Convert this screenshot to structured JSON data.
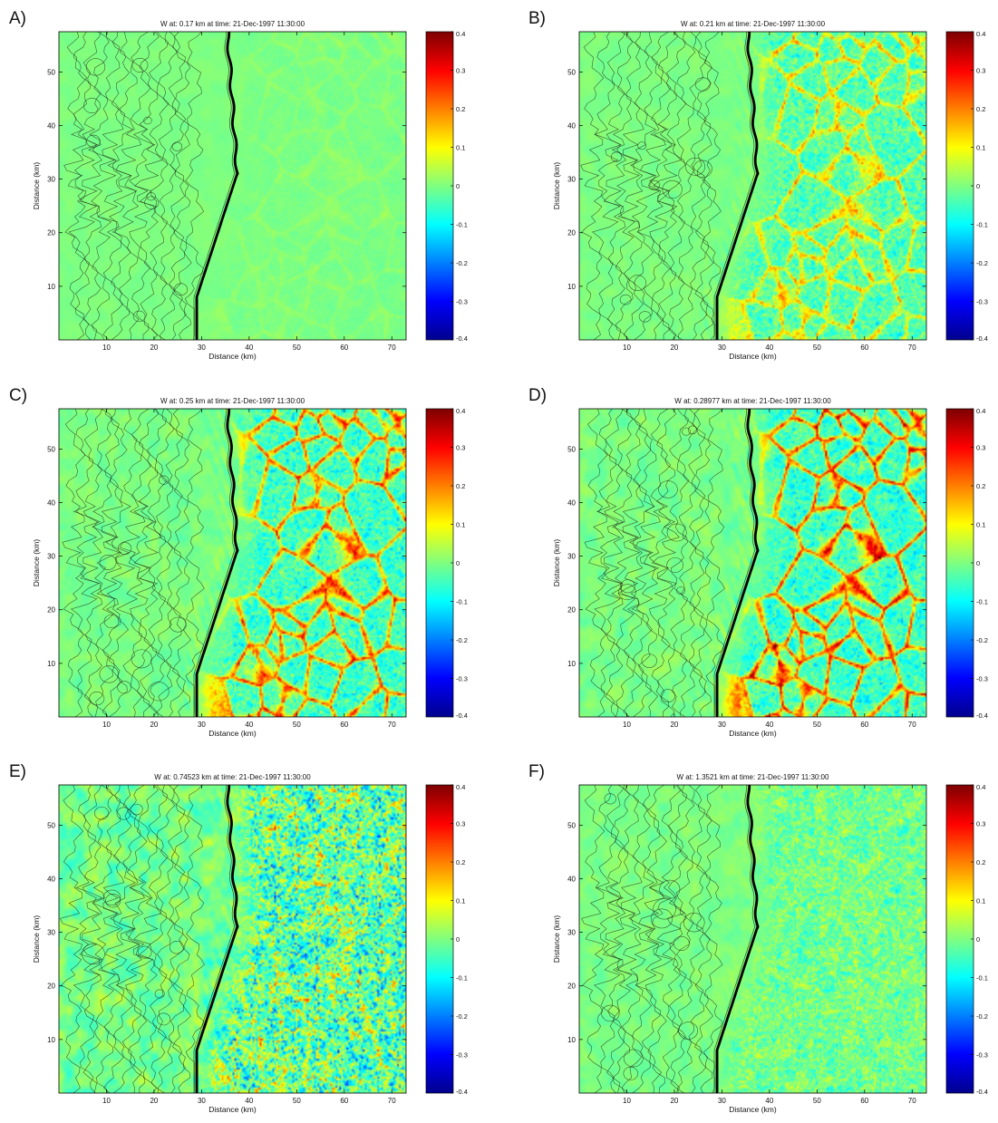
{
  "figure": {
    "palette": {
      "background": "#89c56a",
      "contour": "#1d2a18",
      "coast": "#000000",
      "colormap": [
        "#00008f",
        "#0000ff",
        "#0080ff",
        "#00ffff",
        "#80ff80",
        "#ffff00",
        "#ff8000",
        "#ff0000",
        "#800000"
      ]
    }
  },
  "chart_data": [
    {
      "panel": "A)",
      "type": "heatmap",
      "title": "W   at:  0.17 km    at time:  21-Dec-1997 11:30:00",
      "xlabel": "Distance (km)",
      "ylabel": "Distance (km)",
      "xlim": [
        0,
        73
      ],
      "ylim": [
        0,
        57.5
      ],
      "xticks": [
        10,
        20,
        30,
        40,
        50,
        60,
        70
      ],
      "yticks": [
        10,
        20,
        30,
        40,
        50
      ],
      "colorbar": {
        "limits": [
          -0.4,
          0.4
        ],
        "ticks": [
          "0.4",
          "0.3",
          "0.2",
          "0.1",
          "0",
          "-0.1",
          "-0.2",
          "-0.3",
          "-0.4"
        ]
      },
      "activity": 0.05,
      "cell_strength": 0.06,
      "left_noise": 0.02
    },
    {
      "panel": "B)",
      "type": "heatmap",
      "title": "W   at:  0.21 km    at time:  21-Dec-1997 11:30:00",
      "xlabel": "Distance (km)",
      "ylabel": "Distance (km)",
      "xlim": [
        0,
        73
      ],
      "ylim": [
        0,
        57.5
      ],
      "xticks": [
        10,
        20,
        30,
        40,
        50,
        60,
        70
      ],
      "yticks": [
        10,
        20,
        30,
        40,
        50
      ],
      "colorbar": {
        "limits": [
          -0.4,
          0.4
        ],
        "ticks": [
          "0.4",
          "0.3",
          "0.2",
          "0.1",
          "0",
          "-0.1",
          "-0.2",
          "-0.3",
          "-0.4"
        ]
      },
      "activity": 0.55,
      "cell_strength": 0.5,
      "left_noise": 0.03
    },
    {
      "panel": "C)",
      "type": "heatmap",
      "title": "W   at:  0.25 km    at time:  21-Dec-1997 11:30:00",
      "xlabel": "Distance (km)",
      "ylabel": "Distance (km)",
      "xlim": [
        0,
        73
      ],
      "ylim": [
        0,
        57.5
      ],
      "xticks": [
        10,
        20,
        30,
        40,
        50,
        60,
        70
      ],
      "yticks": [
        10,
        20,
        30,
        40,
        50
      ],
      "colorbar": {
        "limits": [
          -0.4,
          0.4
        ],
        "ticks": [
          "0.4",
          "0.3",
          "0.2",
          "0.1",
          "0",
          "-0.1",
          "-0.2",
          "-0.3",
          "-0.4"
        ]
      },
      "activity": 0.9,
      "cell_strength": 0.85,
      "left_noise": 0.05
    },
    {
      "panel": "D)",
      "type": "heatmap",
      "title": "W   at:  0.28977 km    at time:  21-Dec-1997 11:30:00",
      "xlabel": "Distance (km)",
      "ylabel": "Distance (km)",
      "xlim": [
        0,
        73
      ],
      "ylim": [
        0,
        57.5
      ],
      "xticks": [
        10,
        20,
        30,
        40,
        50,
        60,
        70
      ],
      "yticks": [
        10,
        20,
        30,
        40,
        50
      ],
      "colorbar": {
        "limits": [
          -0.4,
          0.4
        ],
        "ticks": [
          "0.4",
          "0.3",
          "0.2",
          "0.1",
          "0",
          "-0.1",
          "-0.2",
          "-0.3",
          "-0.4"
        ]
      },
      "activity": 1.0,
      "cell_strength": 0.95,
      "left_noise": 0.06
    },
    {
      "panel": "E)",
      "type": "heatmap",
      "title": "W   at:  0.74523 km    at time:  21-Dec-1997 11:30:00",
      "xlabel": "Distance (km)",
      "ylabel": "Distance (km)",
      "xlim": [
        0,
        73
      ],
      "ylim": [
        0,
        57.5
      ],
      "xticks": [
        10,
        20,
        30,
        40,
        50,
        60,
        70
      ],
      "yticks": [
        10,
        20,
        30,
        40,
        50
      ],
      "colorbar": {
        "limits": [
          -0.4,
          0.4
        ],
        "ticks": [
          "0.4",
          "0.3",
          "0.2",
          "0.1",
          "0",
          "-0.1",
          "-0.2",
          "-0.3",
          "-0.4"
        ]
      },
      "activity": 0.95,
      "cell_strength": 0.25,
      "left_noise": 0.12
    },
    {
      "panel": "F)",
      "type": "heatmap",
      "title": "W   at:  1.3521 km    at time:  21-Dec-1997 11:30:00",
      "xlabel": "Distance (km)",
      "ylabel": "Distance (km)",
      "xlim": [
        0,
        73
      ],
      "ylim": [
        0,
        57.5
      ],
      "xticks": [
        10,
        20,
        30,
        40,
        50,
        60,
        70
      ],
      "yticks": [
        10,
        20,
        30,
        40,
        50
      ],
      "colorbar": {
        "limits": [
          -0.4,
          0.4
        ],
        "ticks": [
          "0.4",
          "0.3",
          "0.2",
          "0.1",
          "0",
          "-0.1",
          "-0.2",
          "-0.3",
          "-0.4"
        ]
      },
      "activity": 0.35,
      "cell_strength": 0.05,
      "left_noise": 0.05
    }
  ]
}
